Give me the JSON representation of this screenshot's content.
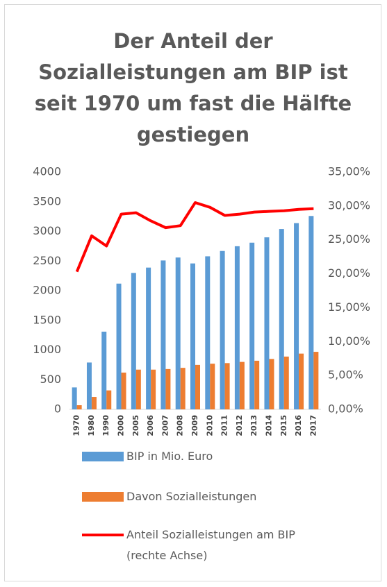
{
  "chart_data": {
    "type": "bar-line",
    "title": [
      "Der Anteil der",
      "Sozialleistungen am BIP ist",
      "seit 1970 um fast die Hälfte",
      "gestiegen"
    ],
    "categories": [
      "1970",
      "1980",
      "1990",
      "2000",
      "2005",
      "2006",
      "2007",
      "2008",
      "2009",
      "2010",
      "2011",
      "2012",
      "2013",
      "2014",
      "2015",
      "2016",
      "2017"
    ],
    "series": [
      {
        "name": "BIP in Mio. Euro",
        "type": "bar",
        "color": "#5b9bd5",
        "values": [
          370,
          790,
          1310,
          2120,
          2300,
          2390,
          2510,
          2560,
          2460,
          2580,
          2670,
          2750,
          2810,
          2900,
          3040,
          3140,
          3260
        ]
      },
      {
        "name": "Davon Sozialleistungen",
        "type": "bar",
        "color": "#ed7d31",
        "values": [
          70,
          210,
          320,
          620,
          670,
          670,
          680,
          700,
          750,
          770,
          780,
          800,
          820,
          850,
          890,
          940,
          970
        ]
      },
      {
        "name": "Anteil Sozialleistungen am BIP (rechte Achse)",
        "type": "line",
        "axis": "y2",
        "color": "#ff0000",
        "values": [
          20.3,
          25.6,
          24.1,
          28.8,
          29.0,
          27.8,
          26.8,
          27.1,
          30.5,
          29.8,
          28.6,
          28.8,
          29.1,
          29.2,
          29.3,
          29.5,
          29.6
        ]
      }
    ],
    "ylim": [
      0,
      4000
    ],
    "yticks": [
      0,
      500,
      1000,
      1500,
      2000,
      2500,
      3000,
      3500,
      4000
    ],
    "y2lim": [
      0,
      35
    ],
    "y2ticks": [
      {
        "value": 0,
        "label": "0,00%"
      },
      {
        "value": 5,
        "label": "5,00%"
      },
      {
        "value": 10,
        "label": "10,00%"
      },
      {
        "value": 15,
        "label": "15,00%"
      },
      {
        "value": 20,
        "label": "20,00%"
      },
      {
        "value": 25,
        "label": "25,00%"
      },
      {
        "value": 30,
        "label": "30,00%"
      },
      {
        "value": 35,
        "label": "35,00%"
      }
    ],
    "grid": false,
    "legend": "bottom"
  }
}
